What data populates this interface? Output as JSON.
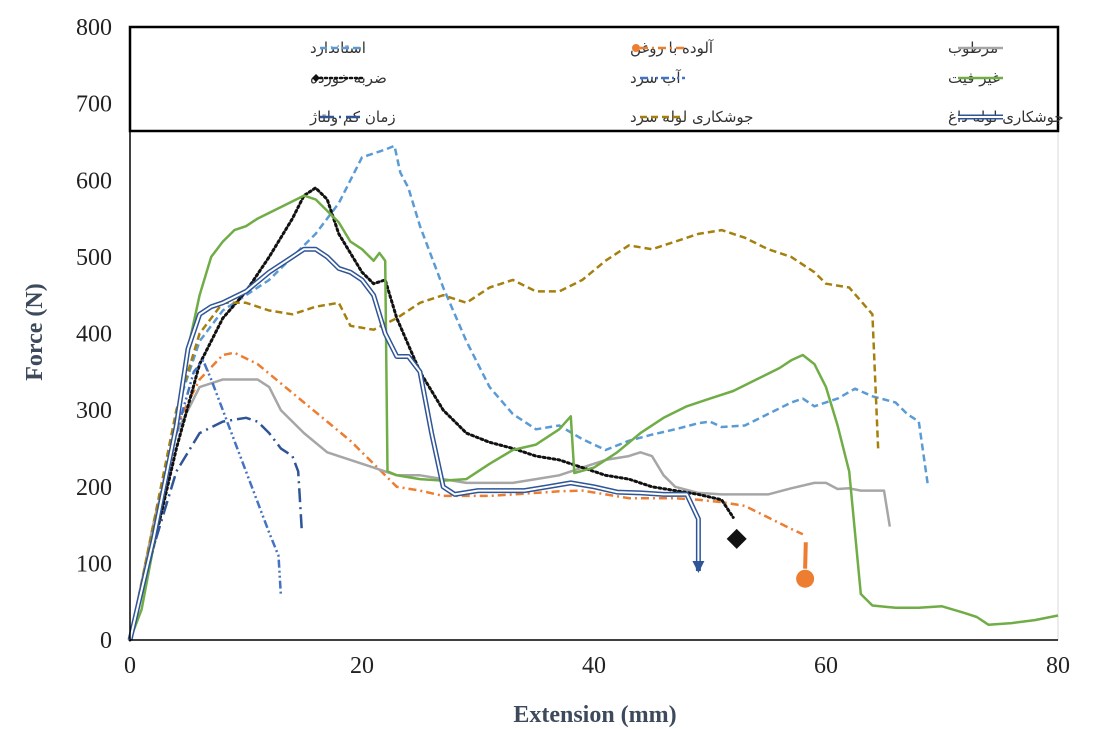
{
  "chart_data": {
    "type": "line",
    "title": "",
    "xlabel": "Extension (mm)",
    "ylabel": "Force (N)",
    "xlim": [
      0,
      80
    ],
    "ylim": [
      0,
      800
    ],
    "xticks": [
      0,
      20,
      40,
      60,
      80
    ],
    "yticks": [
      0,
      100,
      200,
      300,
      400,
      500,
      600,
      700,
      800
    ],
    "grid": false,
    "legend": "top",
    "series": [
      {
        "name": "استاندارد",
        "color": "#5b9bd5",
        "style": "dash",
        "points": [
          [
            0,
            0
          ],
          [
            2,
            130
          ],
          [
            4,
            300
          ],
          [
            6,
            390
          ],
          [
            8,
            430
          ],
          [
            10,
            450
          ],
          [
            12,
            470
          ],
          [
            14,
            500
          ],
          [
            16,
            530
          ],
          [
            18,
            570
          ],
          [
            20,
            630
          ],
          [
            21,
            635
          ],
          [
            22,
            640
          ],
          [
            22.8,
            645
          ],
          [
            23.3,
            610
          ],
          [
            24,
            590
          ],
          [
            25,
            540
          ],
          [
            27,
            460
          ],
          [
            29,
            390
          ],
          [
            31,
            330
          ],
          [
            33,
            295
          ],
          [
            35,
            275
          ],
          [
            37,
            280
          ],
          [
            39,
            262
          ],
          [
            41,
            248
          ],
          [
            43,
            260
          ],
          [
            45,
            268
          ],
          [
            47,
            275
          ],
          [
            49,
            283
          ],
          [
            50,
            285
          ],
          [
            51,
            278
          ],
          [
            53,
            280
          ],
          [
            55,
            295
          ],
          [
            57,
            310
          ],
          [
            58,
            315
          ],
          [
            59,
            305
          ],
          [
            61,
            315
          ],
          [
            62.5,
            328
          ],
          [
            64,
            318
          ],
          [
            66,
            310
          ],
          [
            67,
            295
          ],
          [
            68,
            285
          ],
          [
            68.8,
            200
          ]
        ]
      },
      {
        "name": "آلوده با روغن",
        "color": "#ed7d31",
        "style": "dashdot",
        "points": [
          [
            0,
            0
          ],
          [
            2,
            150
          ],
          [
            4,
            280
          ],
          [
            6,
            340
          ],
          [
            8,
            372
          ],
          [
            9,
            375
          ],
          [
            11,
            360
          ],
          [
            13,
            335
          ],
          [
            15,
            310
          ],
          [
            17,
            285
          ],
          [
            19,
            260
          ],
          [
            21,
            230
          ],
          [
            23,
            200
          ],
          [
            25,
            195
          ],
          [
            27,
            188
          ],
          [
            29,
            188
          ],
          [
            31,
            188
          ],
          [
            33,
            190
          ],
          [
            35,
            192
          ],
          [
            37,
            194
          ],
          [
            39,
            195
          ],
          [
            41,
            190
          ],
          [
            43,
            185
          ],
          [
            45,
            185
          ],
          [
            47,
            185
          ],
          [
            49,
            183
          ],
          [
            51,
            180
          ],
          [
            53,
            175
          ],
          [
            55,
            160
          ],
          [
            57,
            145
          ],
          [
            58,
            138
          ]
        ],
        "end_marker": "circle",
        "end_point": [
          58.2,
          80
        ]
      },
      {
        "name": "مرطوب",
        "color": "#a6a6a6",
        "style": "solid",
        "points": [
          [
            0,
            0
          ],
          [
            2,
            150
          ],
          [
            4,
            270
          ],
          [
            6,
            330
          ],
          [
            8,
            340
          ],
          [
            11,
            340
          ],
          [
            12,
            330
          ],
          [
            13,
            300
          ],
          [
            15,
            270
          ],
          [
            17,
            245
          ],
          [
            19,
            235
          ],
          [
            21,
            225
          ],
          [
            23,
            215
          ],
          [
            25,
            215
          ],
          [
            27,
            210
          ],
          [
            29,
            205
          ],
          [
            31,
            205
          ],
          [
            33,
            205
          ],
          [
            35,
            210
          ],
          [
            37,
            215
          ],
          [
            39,
            225
          ],
          [
            41,
            235
          ],
          [
            43,
            240
          ],
          [
            44,
            245
          ],
          [
            45,
            240
          ],
          [
            46,
            215
          ],
          [
            47,
            200
          ],
          [
            49,
            192
          ],
          [
            51,
            190
          ],
          [
            53,
            190
          ],
          [
            55,
            190
          ],
          [
            57,
            198
          ],
          [
            59,
            205
          ],
          [
            60,
            205
          ],
          [
            61,
            197
          ],
          [
            62,
            198
          ],
          [
            63,
            195
          ],
          [
            65,
            195
          ],
          [
            65.5,
            148
          ]
        ]
      },
      {
        "name": "ضربه خورده",
        "color": "#111111",
        "style": "dot",
        "points": [
          [
            0,
            0
          ],
          [
            2,
            120
          ],
          [
            4,
            250
          ],
          [
            6,
            360
          ],
          [
            8,
            420
          ],
          [
            10,
            455
          ],
          [
            12,
            500
          ],
          [
            14,
            550
          ],
          [
            15,
            580
          ],
          [
            16,
            590
          ],
          [
            17,
            575
          ],
          [
            18,
            530
          ],
          [
            20,
            480
          ],
          [
            21,
            465
          ],
          [
            22,
            470
          ],
          [
            23,
            420
          ],
          [
            25,
            350
          ],
          [
            27,
            300
          ],
          [
            29,
            270
          ],
          [
            31,
            258
          ],
          [
            33,
            250
          ],
          [
            35,
            240
          ],
          [
            37,
            235
          ],
          [
            39,
            225
          ],
          [
            41,
            215
          ],
          [
            43,
            210
          ],
          [
            45,
            200
          ],
          [
            47,
            195
          ],
          [
            49,
            190
          ],
          [
            51,
            183
          ],
          [
            52,
            160
          ]
        ],
        "end_marker": "diamond",
        "end_point": [
          52.3,
          132
        ]
      },
      {
        "name": "آب سرد",
        "color": "#4472c4",
        "style": "dashdotdot",
        "points": [
          [
            0,
            0
          ],
          [
            2,
            130
          ],
          [
            4,
            270
          ],
          [
            5.5,
            350
          ],
          [
            6.3,
            365
          ],
          [
            7,
            340
          ],
          [
            8,
            300
          ],
          [
            9,
            260
          ],
          [
            10,
            220
          ],
          [
            11,
            180
          ],
          [
            12,
            140
          ],
          [
            12.8,
            110
          ],
          [
            13,
            60
          ]
        ]
      },
      {
        "name": "غیر فیت",
        "color": "#70ad47",
        "style": "solid",
        "points": [
          [
            0,
            0
          ],
          [
            1,
            40
          ],
          [
            2,
            120
          ],
          [
            3,
            200
          ],
          [
            4,
            290
          ],
          [
            5,
            380
          ],
          [
            6,
            450
          ],
          [
            7,
            500
          ],
          [
            8,
            520
          ],
          [
            9,
            535
          ],
          [
            10,
            540
          ],
          [
            11,
            550
          ],
          [
            13,
            565
          ],
          [
            15,
            580
          ],
          [
            16,
            575
          ],
          [
            17,
            560
          ],
          [
            18,
            545
          ],
          [
            19,
            520
          ],
          [
            20,
            510
          ],
          [
            21,
            495
          ],
          [
            21.5,
            505
          ],
          [
            22,
            495
          ],
          [
            22.2,
            220
          ],
          [
            23,
            215
          ],
          [
            25,
            210
          ],
          [
            27,
            208
          ],
          [
            29,
            210
          ],
          [
            31,
            230
          ],
          [
            33,
            248
          ],
          [
            35,
            255
          ],
          [
            37,
            275
          ],
          [
            38,
            292
          ],
          [
            38.3,
            218
          ],
          [
            40,
            225
          ],
          [
            42,
            245
          ],
          [
            44,
            270
          ],
          [
            46,
            290
          ],
          [
            48,
            305
          ],
          [
            50,
            315
          ],
          [
            52,
            325
          ],
          [
            54,
            340
          ],
          [
            56,
            355
          ],
          [
            57,
            365
          ],
          [
            58,
            372
          ],
          [
            59,
            360
          ],
          [
            60,
            330
          ],
          [
            61,
            280
          ],
          [
            62,
            220
          ],
          [
            63,
            60
          ],
          [
            64,
            45
          ],
          [
            66,
            42
          ],
          [
            68,
            42
          ],
          [
            70,
            44
          ],
          [
            72,
            35
          ],
          [
            73,
            30
          ],
          [
            74,
            20
          ],
          [
            76,
            22
          ],
          [
            78,
            26
          ],
          [
            80,
            32
          ]
        ]
      },
      {
        "name": "زمان کم ولتاژ",
        "color": "#2f5597",
        "style": "longdashdot",
        "points": [
          [
            0,
            0
          ],
          [
            2,
            120
          ],
          [
            4,
            220
          ],
          [
            6,
            270
          ],
          [
            8,
            285
          ],
          [
            10,
            290
          ],
          [
            11,
            285
          ],
          [
            12,
            270
          ],
          [
            13,
            250
          ],
          [
            14,
            240
          ],
          [
            14.5,
            220
          ],
          [
            14.8,
            145
          ]
        ]
      },
      {
        "name": "جوشکاری لوله سرد",
        "color": "#a5800f",
        "style": "dash",
        "points": [
          [
            0,
            0
          ],
          [
            2,
            150
          ],
          [
            4,
            300
          ],
          [
            6,
            400
          ],
          [
            8,
            440
          ],
          [
            10,
            440
          ],
          [
            12,
            430
          ],
          [
            14,
            425
          ],
          [
            16,
            435
          ],
          [
            18,
            440
          ],
          [
            19,
            410
          ],
          [
            21,
            405
          ],
          [
            23,
            420
          ],
          [
            25,
            440
          ],
          [
            27,
            450
          ],
          [
            29,
            440
          ],
          [
            31,
            460
          ],
          [
            33,
            470
          ],
          [
            35,
            455
          ],
          [
            37,
            455
          ],
          [
            39,
            470
          ],
          [
            41,
            495
          ],
          [
            43,
            515
          ],
          [
            45,
            510
          ],
          [
            47,
            520
          ],
          [
            49,
            530
          ],
          [
            51,
            535
          ],
          [
            53,
            525
          ],
          [
            55,
            510
          ],
          [
            57,
            500
          ],
          [
            59,
            480
          ],
          [
            60,
            465
          ],
          [
            62,
            460
          ],
          [
            64,
            425
          ],
          [
            64.5,
            248
          ]
        ]
      },
      {
        "name": "جوشکاری لوله داغ",
        "color": "#2f5597",
        "style": "double",
        "points": [
          [
            0,
            0
          ],
          [
            2,
            130
          ],
          [
            4,
            280
          ],
          [
            5,
            380
          ],
          [
            6,
            425
          ],
          [
            7,
            435
          ],
          [
            8,
            440
          ],
          [
            10,
            455
          ],
          [
            12,
            480
          ],
          [
            14,
            500
          ],
          [
            15,
            510
          ],
          [
            16,
            510
          ],
          [
            17,
            500
          ],
          [
            18,
            485
          ],
          [
            19,
            480
          ],
          [
            20,
            470
          ],
          [
            21,
            450
          ],
          [
            22,
            400
          ],
          [
            23,
            370
          ],
          [
            24,
            370
          ],
          [
            25,
            350
          ],
          [
            26,
            270
          ],
          [
            27,
            200
          ],
          [
            28,
            190
          ],
          [
            30,
            195
          ],
          [
            32,
            195
          ],
          [
            34,
            195
          ],
          [
            36,
            200
          ],
          [
            38,
            205
          ],
          [
            40,
            200
          ],
          [
            42,
            193
          ],
          [
            44,
            192
          ],
          [
            46,
            190
          ],
          [
            48,
            190
          ],
          [
            49,
            158
          ],
          [
            49,
            90
          ]
        ],
        "end_marker": "arrow"
      }
    ]
  }
}
